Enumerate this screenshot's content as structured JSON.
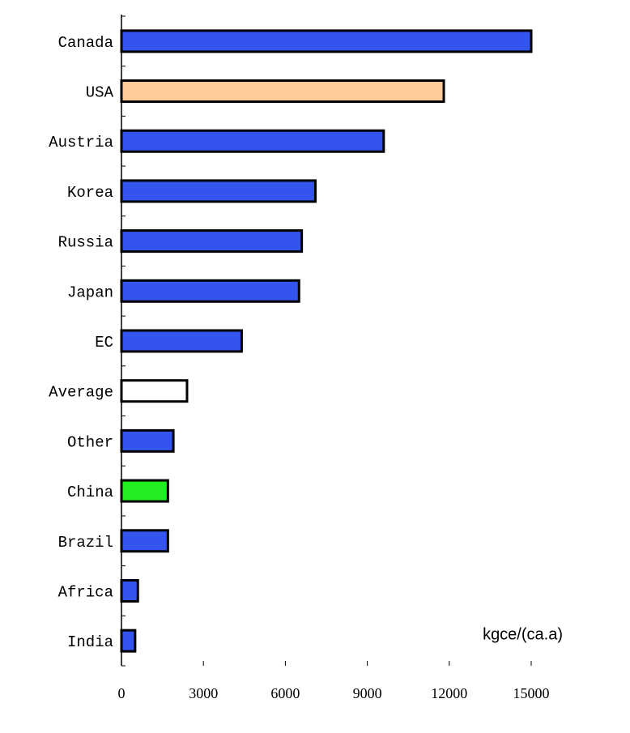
{
  "chart_data": {
    "type": "bar",
    "orientation": "horizontal",
    "categories": [
      "Canada",
      "USA",
      "Austria",
      "Korea",
      "Russia",
      "Japan",
      "EC",
      "Average",
      "Other",
      "China",
      "Brazil",
      "Africa",
      "India"
    ],
    "values": [
      15000,
      11800,
      9600,
      7100,
      6600,
      6500,
      4400,
      2400,
      1900,
      1700,
      1700,
      600,
      500
    ],
    "colors": [
      "#3355ee",
      "#ffcc99",
      "#3355ee",
      "#3355ee",
      "#3355ee",
      "#3355ee",
      "#3355ee",
      "#ffffff",
      "#3355ee",
      "#22ee22",
      "#3355ee",
      "#3355ee",
      "#3355ee"
    ],
    "xlim": [
      0,
      15000
    ],
    "xticks": [
      0,
      3000,
      6000,
      9000,
      12000,
      15000
    ],
    "unit_label": "kgce/(ca.a)"
  }
}
